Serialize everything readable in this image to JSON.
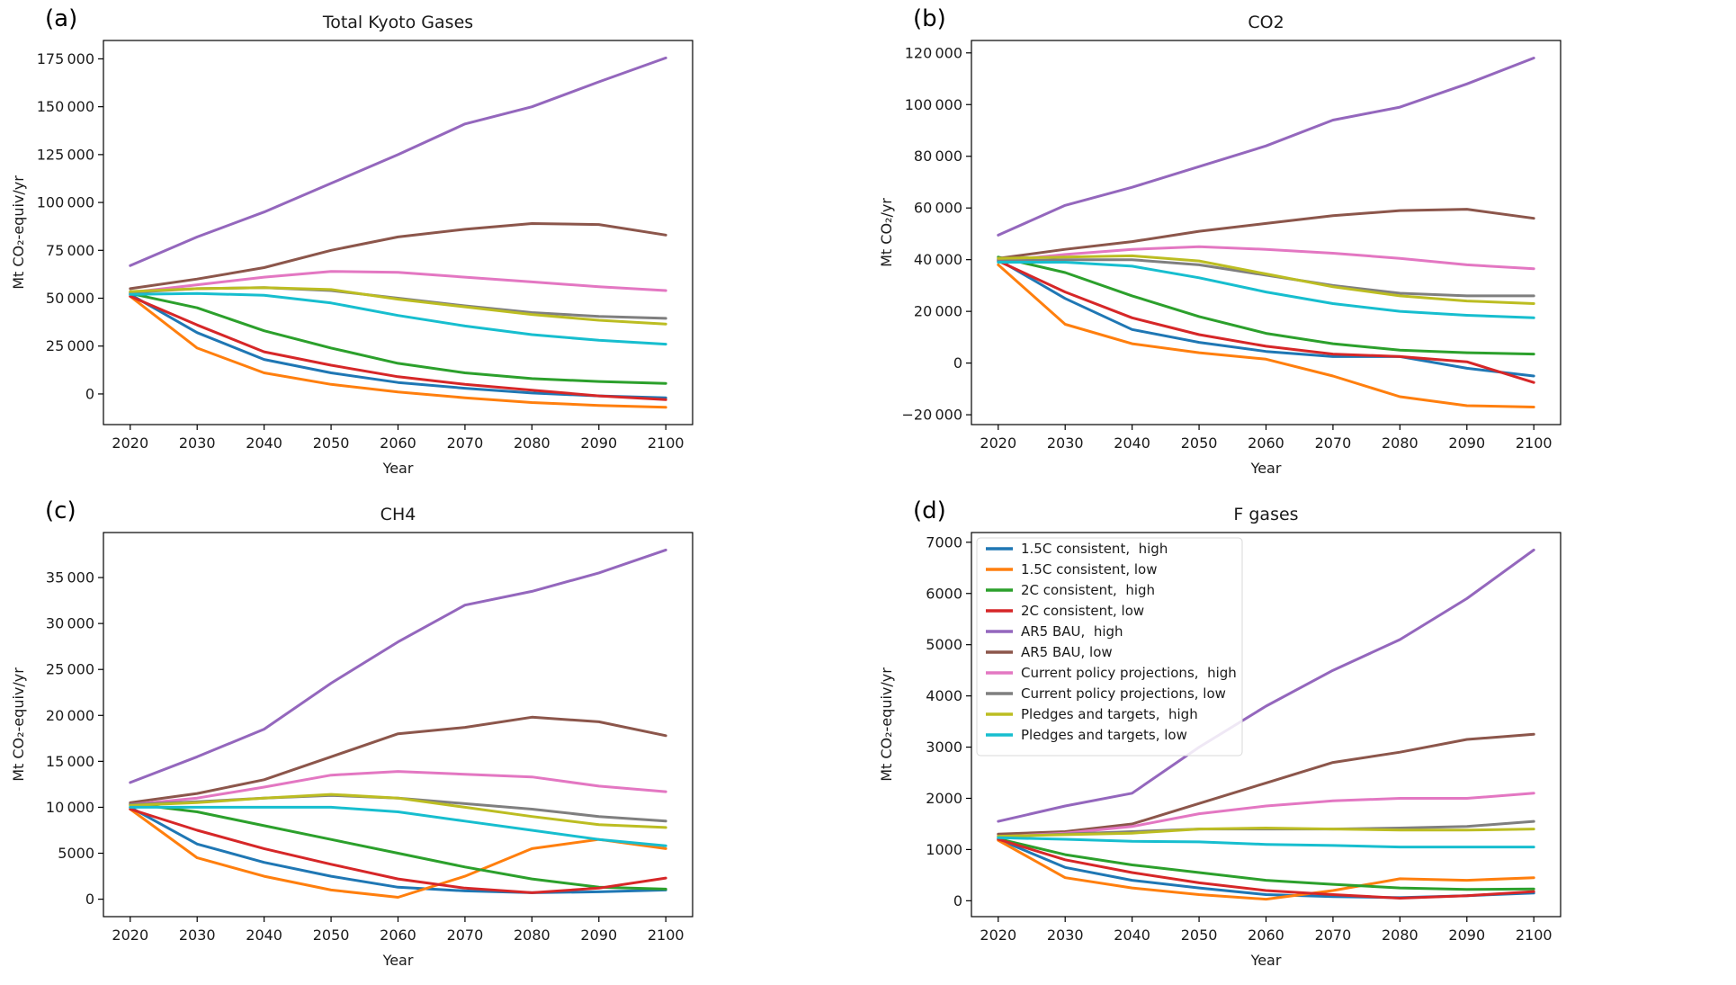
{
  "page": {
    "background": "#ffffff"
  },
  "chart_data": [
    {
      "id": "a",
      "panel_label": "(a)",
      "type": "line",
      "title": "Total Kyoto Gases",
      "xlabel": "Year",
      "ylabel": "Mt CO₂-equiv/yr",
      "x": [
        2020,
        2030,
        2040,
        2050,
        2060,
        2070,
        2080,
        2090,
        2100
      ],
      "xlim": [
        2016,
        2104
      ],
      "ylim": [
        -16000,
        184600
      ],
      "yticks": [
        0,
        25000,
        50000,
        75000,
        100000,
        125000,
        150000,
        175000
      ],
      "show_legend": false,
      "series": [
        {
          "name": "1.5C consistent,  high",
          "color": "#1f77b4",
          "values": [
            52000,
            32000,
            18000,
            11000,
            6000,
            3000,
            500,
            -1000,
            -2000
          ]
        },
        {
          "name": "1.5C consistent, low",
          "color": "#ff7f0e",
          "values": [
            51000,
            24000,
            11000,
            5000,
            1000,
            -2000,
            -4500,
            -6000,
            -7000
          ]
        },
        {
          "name": "2C consistent,  high",
          "color": "#2ca02c",
          "values": [
            52500,
            45000,
            33000,
            24000,
            16000,
            11000,
            8000,
            6500,
            5500
          ]
        },
        {
          "name": "2C consistent, low",
          "color": "#d62728",
          "values": [
            51000,
            36000,
            22000,
            15000,
            9000,
            5000,
            2000,
            -1000,
            -3000
          ]
        },
        {
          "name": "AR5 BAU,  high",
          "color": "#9467bd",
          "values": [
            67000,
            82000,
            95000,
            110000,
            125000,
            141000,
            150000,
            163000,
            175500
          ]
        },
        {
          "name": "AR5 BAU, low",
          "color": "#8c564b",
          "values": [
            55000,
            60000,
            66000,
            75000,
            82000,
            86000,
            89000,
            88500,
            83000
          ]
        },
        {
          "name": "Current policy projections,  high",
          "color": "#e377c2",
          "values": [
            53000,
            57000,
            61000,
            64000,
            63500,
            61000,
            58500,
            56000,
            54000
          ]
        },
        {
          "name": "Current policy projections, low",
          "color": "#7f7f7f",
          "values": [
            53000,
            55000,
            55500,
            54000,
            50000,
            46000,
            42500,
            40500,
            39500
          ]
        },
        {
          "name": "Pledges and targets,  high",
          "color": "#bcbd22",
          "values": [
            53500,
            55000,
            55500,
            54500,
            49500,
            45500,
            41500,
            38500,
            36500
          ]
        },
        {
          "name": "Pledges and targets, low",
          "color": "#17becf",
          "values": [
            52000,
            52500,
            51500,
            47500,
            41000,
            35500,
            31000,
            28000,
            26000
          ]
        }
      ]
    },
    {
      "id": "b",
      "panel_label": "(b)",
      "type": "line",
      "title": "CO2",
      "xlabel": "Year",
      "ylabel": "Mt CO₂/yr",
      "x": [
        2020,
        2030,
        2040,
        2050,
        2060,
        2070,
        2080,
        2090,
        2100
      ],
      "xlim": [
        2016,
        2104
      ],
      "ylim": [
        -23800,
        124800
      ],
      "yticks": [
        -20000,
        0,
        20000,
        40000,
        60000,
        80000,
        100000,
        120000
      ],
      "show_legend": false,
      "series": [
        {
          "name": "1.5C consistent,  high",
          "color": "#1f77b4",
          "values": [
            40000,
            25000,
            13000,
            8000,
            4500,
            2500,
            2500,
            -2000,
            -5000
          ]
        },
        {
          "name": "1.5C consistent, low",
          "color": "#ff7f0e",
          "values": [
            38000,
            15000,
            7500,
            4000,
            1500,
            -5000,
            -13000,
            -16500,
            -17000
          ]
        },
        {
          "name": "2C consistent,  high",
          "color": "#2ca02c",
          "values": [
            41000,
            35000,
            26000,
            18000,
            11500,
            7500,
            5000,
            4000,
            3500
          ]
        },
        {
          "name": "2C consistent, low",
          "color": "#d62728",
          "values": [
            39500,
            27500,
            17500,
            11000,
            6500,
            3500,
            2500,
            500,
            -7500
          ]
        },
        {
          "name": "AR5 BAU,  high",
          "color": "#9467bd",
          "values": [
            49500,
            61000,
            68000,
            76000,
            84000,
            94000,
            99000,
            108000,
            118000
          ]
        },
        {
          "name": "AR5 BAU, low",
          "color": "#8c564b",
          "values": [
            40500,
            44000,
            47000,
            51000,
            54000,
            57000,
            59000,
            59500,
            56000
          ]
        },
        {
          "name": "Current policy projections,  high",
          "color": "#e377c2",
          "values": [
            39500,
            42000,
            44000,
            45000,
            44000,
            42500,
            40500,
            38000,
            36500
          ]
        },
        {
          "name": "Current policy projections, low",
          "color": "#7f7f7f",
          "values": [
            39500,
            40000,
            40000,
            38000,
            34000,
            30000,
            27000,
            26000,
            26000
          ]
        },
        {
          "name": "Pledges and targets,  high",
          "color": "#bcbd22",
          "values": [
            40500,
            41000,
            41500,
            39500,
            34500,
            29500,
            26000,
            24000,
            23000
          ]
        },
        {
          "name": "Pledges and targets, low",
          "color": "#17becf",
          "values": [
            39000,
            39000,
            37500,
            33000,
            27500,
            23000,
            20000,
            18500,
            17500
          ]
        }
      ]
    },
    {
      "id": "c",
      "panel_label": "(c)",
      "type": "line",
      "title": "CH4",
      "xlabel": "Year",
      "ylabel": "Mt CO₂-equiv/yr",
      "x": [
        2020,
        2030,
        2040,
        2050,
        2060,
        2070,
        2080,
        2090,
        2100
      ],
      "xlim": [
        2016,
        2104
      ],
      "ylim": [
        -1900,
        39900
      ],
      "yticks": [
        0,
        5000,
        10000,
        15000,
        20000,
        25000,
        30000,
        35000
      ],
      "show_legend": false,
      "series": [
        {
          "name": "1.5C consistent,  high",
          "color": "#1f77b4",
          "values": [
            10000,
            6000,
            4000,
            2500,
            1300,
            900,
            700,
            800,
            1000
          ]
        },
        {
          "name": "1.5C consistent, low",
          "color": "#ff7f0e",
          "values": [
            9800,
            4500,
            2500,
            1000,
            200,
            2500,
            5500,
            6500,
            5500
          ]
        },
        {
          "name": "2C consistent,  high",
          "color": "#2ca02c",
          "values": [
            10400,
            9500,
            8000,
            6500,
            5000,
            3500,
            2200,
            1300,
            1100
          ]
        },
        {
          "name": "2C consistent, low",
          "color": "#d62728",
          "values": [
            9800,
            7500,
            5500,
            3800,
            2200,
            1200,
            700,
            1200,
            2300
          ]
        },
        {
          "name": "AR5 BAU,  high",
          "color": "#9467bd",
          "values": [
            12700,
            15500,
            18500,
            23500,
            28000,
            32000,
            33500,
            35500,
            38000
          ]
        },
        {
          "name": "AR5 BAU, low",
          "color": "#8c564b",
          "values": [
            10500,
            11500,
            13000,
            15500,
            18000,
            18700,
            19800,
            19300,
            17800
          ]
        },
        {
          "name": "Current policy projections,  high",
          "color": "#e377c2",
          "values": [
            10300,
            11000,
            12200,
            13500,
            13900,
            13600,
            13300,
            12300,
            11700
          ]
        },
        {
          "name": "Current policy projections, low",
          "color": "#7f7f7f",
          "values": [
            10300,
            10600,
            11000,
            11300,
            11000,
            10400,
            9800,
            9000,
            8500
          ]
        },
        {
          "name": "Pledges and targets,  high",
          "color": "#bcbd22",
          "values": [
            10200,
            10500,
            11000,
            11400,
            11000,
            10000,
            9000,
            8100,
            7800
          ]
        },
        {
          "name": "Pledges and targets, low",
          "color": "#17becf",
          "values": [
            10000,
            10000,
            10000,
            10000,
            9500,
            8500,
            7500,
            6500,
            5800
          ]
        }
      ]
    },
    {
      "id": "d",
      "panel_label": "(d)",
      "type": "line",
      "title": "F gases",
      "xlabel": "Year",
      "ylabel": "Mt CO₂-equiv/yr",
      "x": [
        2020,
        2030,
        2040,
        2050,
        2060,
        2070,
        2080,
        2090,
        2100
      ],
      "xlim": [
        2016,
        2104
      ],
      "ylim": [
        -310,
        7190
      ],
      "yticks": [
        0,
        1000,
        2000,
        3000,
        4000,
        5000,
        6000,
        7000
      ],
      "show_legend": true,
      "series": [
        {
          "name": "1.5C consistent,  high",
          "color": "#1f77b4",
          "values": [
            1200,
            650,
            400,
            250,
            120,
            80,
            60,
            100,
            150
          ]
        },
        {
          "name": "1.5C consistent, low",
          "color": "#ff7f0e",
          "values": [
            1180,
            450,
            250,
            120,
            30,
            200,
            430,
            400,
            450
          ]
        },
        {
          "name": "2C consistent,  high",
          "color": "#2ca02c",
          "values": [
            1210,
            900,
            700,
            550,
            400,
            320,
            250,
            220,
            230
          ]
        },
        {
          "name": "2C consistent, low",
          "color": "#d62728",
          "values": [
            1200,
            800,
            550,
            350,
            200,
            120,
            50,
            100,
            180
          ]
        },
        {
          "name": "AR5 BAU,  high",
          "color": "#9467bd",
          "values": [
            1550,
            1850,
            2100,
            3000,
            3800,
            4500,
            5100,
            5900,
            6850
          ]
        },
        {
          "name": "AR5 BAU, low",
          "color": "#8c564b",
          "values": [
            1300,
            1350,
            1500,
            1900,
            2300,
            2700,
            2900,
            3150,
            3250
          ]
        },
        {
          "name": "Current policy projections,  high",
          "color": "#e377c2",
          "values": [
            1250,
            1320,
            1450,
            1700,
            1850,
            1950,
            2000,
            2000,
            2100
          ]
        },
        {
          "name": "Current policy projections, low",
          "color": "#7f7f7f",
          "values": [
            1250,
            1300,
            1350,
            1400,
            1400,
            1400,
            1420,
            1450,
            1550
          ]
        },
        {
          "name": "Pledges and targets,  high",
          "color": "#bcbd22",
          "values": [
            1260,
            1290,
            1320,
            1400,
            1420,
            1400,
            1380,
            1380,
            1400
          ]
        },
        {
          "name": "Pledges and targets, low",
          "color": "#17becf",
          "values": [
            1230,
            1200,
            1160,
            1150,
            1100,
            1080,
            1050,
            1050,
            1050
          ]
        }
      ]
    }
  ]
}
